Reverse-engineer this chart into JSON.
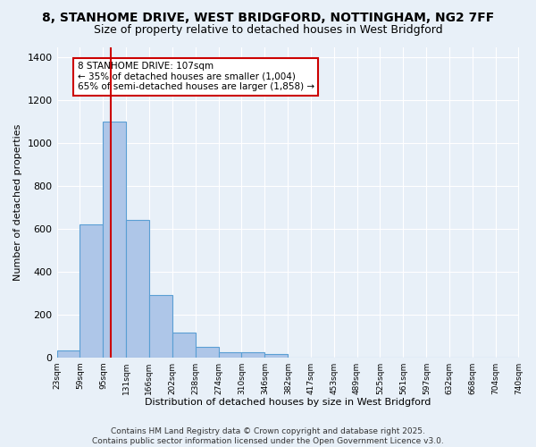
{
  "title": "8, STANHOME DRIVE, WEST BRIDGFORD, NOTTINGHAM, NG2 7FF",
  "subtitle": "Size of property relative to detached houses in West Bridgford",
  "xlabel": "Distribution of detached houses by size in West Bridgford",
  "ylabel": "Number of detached properties",
  "bin_edges": [
    23,
    59,
    95,
    131,
    166,
    202,
    238,
    274,
    310,
    346,
    382,
    417,
    453,
    489,
    525,
    561,
    597,
    632,
    668,
    704,
    740
  ],
  "bar_heights": [
    30,
    620,
    1100,
    640,
    290,
    115,
    48,
    22,
    22,
    14,
    0,
    0,
    0,
    0,
    0,
    0,
    0,
    0,
    0,
    0
  ],
  "bar_color": "#aec6e8",
  "bar_edge_color": "#5a9fd4",
  "property_size": 107,
  "red_line_color": "#cc0000",
  "annotation_text": "8 STANHOME DRIVE: 107sqm\n← 35% of detached houses are smaller (1,004)\n65% of semi-detached houses are larger (1,858) →",
  "annotation_box_color": "#ffffff",
  "annotation_box_edge_color": "#cc0000",
  "ylim": [
    0,
    1450
  ],
  "yticks": [
    0,
    200,
    400,
    600,
    800,
    1000,
    1200,
    1400
  ],
  "bg_color": "#e8f0f8",
  "grid_color": "#ffffff",
  "footer_text": "Contains HM Land Registry data © Crown copyright and database right 2025.\nContains public sector information licensed under the Open Government Licence v3.0.",
  "title_fontsize": 10,
  "subtitle_fontsize": 9,
  "annotation_fontsize": 7.5,
  "footer_fontsize": 6.5,
  "ylabel_fontsize": 8,
  "xlabel_fontsize": 8
}
